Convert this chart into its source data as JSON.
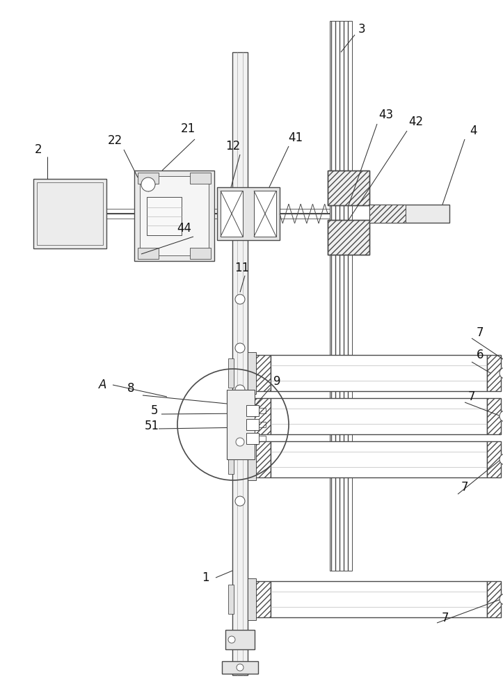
{
  "bg_color": "#ffffff",
  "lc": "#4a4a4a",
  "lw": 0.8,
  "figsize": [
    7.23,
    10.0
  ],
  "dpi": 100
}
